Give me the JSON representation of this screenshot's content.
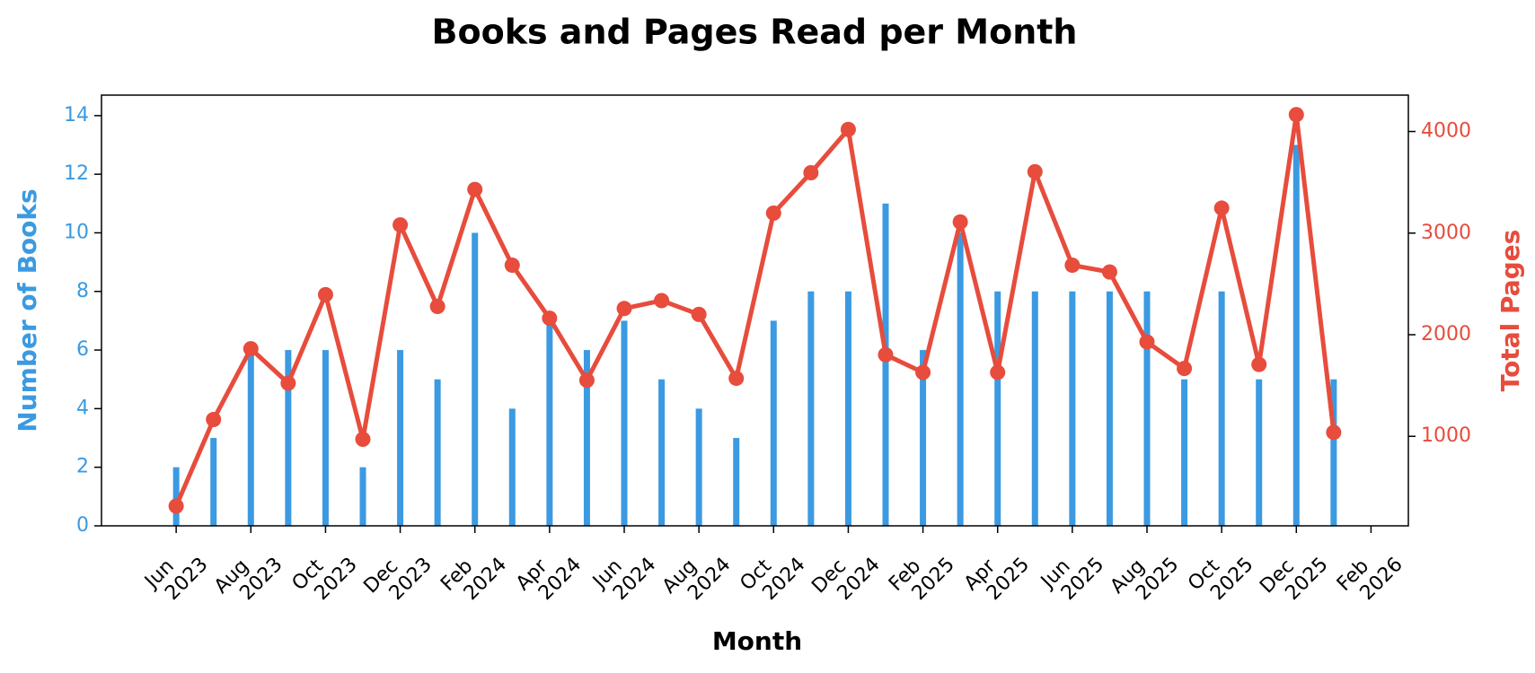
{
  "chart_data": {
    "type": "bar-line",
    "title": "Books and Pages Read per Month",
    "xlabel": "Month",
    "ylabel": "Number of Books",
    "y2label": "Total Pages",
    "x": [
      "2023-06",
      "2023-07",
      "2023-08",
      "2023-09",
      "2023-10",
      "2023-11",
      "2023-12",
      "2024-01",
      "2024-02",
      "2024-03",
      "2024-04",
      "2024-05",
      "2024-06",
      "2024-07",
      "2024-08",
      "2024-09",
      "2024-10",
      "2024-11",
      "2024-12",
      "2025-01",
      "2025-02",
      "2025-03",
      "2025-04",
      "2025-05",
      "2025-06",
      "2025-07",
      "2025-08",
      "2025-09",
      "2025-10",
      "2025-11",
      "2025-12",
      "2026-01"
    ],
    "series": [
      {
        "type": "bar",
        "axis": "y",
        "color": "#3b9ae1",
        "values": [
          2,
          3,
          6,
          6,
          6,
          2,
          6,
          5,
          10,
          4,
          7,
          6,
          7,
          5,
          4,
          3,
          7,
          8,
          8,
          11,
          6,
          10,
          8,
          8,
          8,
          8,
          8,
          5,
          8,
          5,
          13,
          5
        ]
      },
      {
        "type": "line",
        "axis": "y2",
        "color": "#e74c3c",
        "values": [
          313,
          1165,
          1862,
          1523,
          2394,
          971,
          3081,
          2278,
          3430,
          2684,
          2162,
          1552,
          2258,
          2336,
          2200,
          1571,
          3197,
          3594,
          4020,
          1803,
          1629,
          3110,
          1629,
          3604,
          2684,
          2617,
          1929,
          1668,
          3246,
          1707,
          4166,
          1039
        ]
      }
    ],
    "xlim": [
      "2023-04",
      "2026-03"
    ],
    "xticks": [
      {
        "value": "2023-06",
        "label": "Jun 2023"
      },
      {
        "value": "2023-08",
        "label": "Aug 2023"
      },
      {
        "value": "2023-10",
        "label": "Oct 2023"
      },
      {
        "value": "2023-12",
        "label": "Dec 2023"
      },
      {
        "value": "2024-02",
        "label": "Feb 2024"
      },
      {
        "value": "2024-04",
        "label": "Apr 2024"
      },
      {
        "value": "2024-06",
        "label": "Jun 2024"
      },
      {
        "value": "2024-08",
        "label": "Aug 2024"
      },
      {
        "value": "2024-10",
        "label": "Oct 2024"
      },
      {
        "value": "2024-12",
        "label": "Dec 2024"
      },
      {
        "value": "2025-02",
        "label": "Feb 2025"
      },
      {
        "value": "2025-04",
        "label": "Apr 2025"
      },
      {
        "value": "2025-06",
        "label": "Jun 2025"
      },
      {
        "value": "2025-08",
        "label": "Aug 2025"
      },
      {
        "value": "2025-10",
        "label": "Oct 2025"
      },
      {
        "value": "2025-12",
        "label": "Dec 2025"
      },
      {
        "value": "2026-02",
        "label": "Feb 2026"
      }
    ],
    "ylim": [
      0,
      14.7
    ],
    "yticks": [
      0,
      2,
      4,
      6,
      8,
      10,
      12,
      14
    ],
    "y2lim": [
      119,
      4358
    ],
    "y2ticks": [
      1000,
      2000,
      3000,
      4000
    ],
    "grid": false
  }
}
